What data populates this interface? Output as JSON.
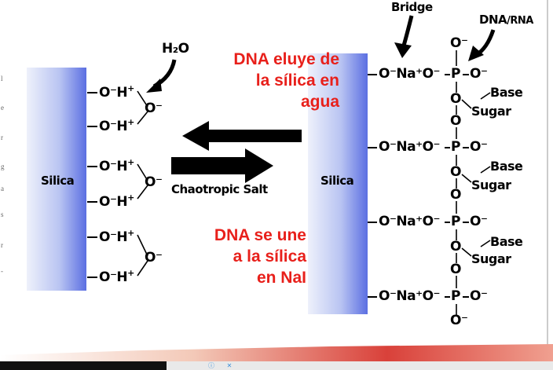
{
  "labels": {
    "bridge": "Bridge",
    "dna_rna_prefix": "DNA",
    "dna_rna_suffix": "/RNA",
    "h2o": "H₂O",
    "silica_left": "Silica",
    "silica_right": "Silica",
    "chaotropic_salt": "Chaotropic Salt",
    "base": "Base",
    "sugar": "Sugar"
  },
  "red_text": {
    "elution": [
      "DNA eluye  de",
      "la sílica en",
      "agua"
    ],
    "binding": [
      "DNA se une",
      "a la sílica",
      "en NaI"
    ]
  },
  "groups": {
    "oh": "O⁻H",
    "plus": "+",
    "o_minus": "O⁻",
    "o": "O",
    "na_chain": "O⁻Na⁺O⁻",
    "p": "P",
    "dash_o_minus": "O⁻"
  },
  "colors": {
    "red": "#e8201b",
    "silica_light": "#e6eaf7",
    "silica_dark": "#5a6fe0",
    "border_stripe": "#d9413a"
  },
  "ad": {
    "info_icon": "info-icon",
    "close_icon": "close-icon"
  }
}
